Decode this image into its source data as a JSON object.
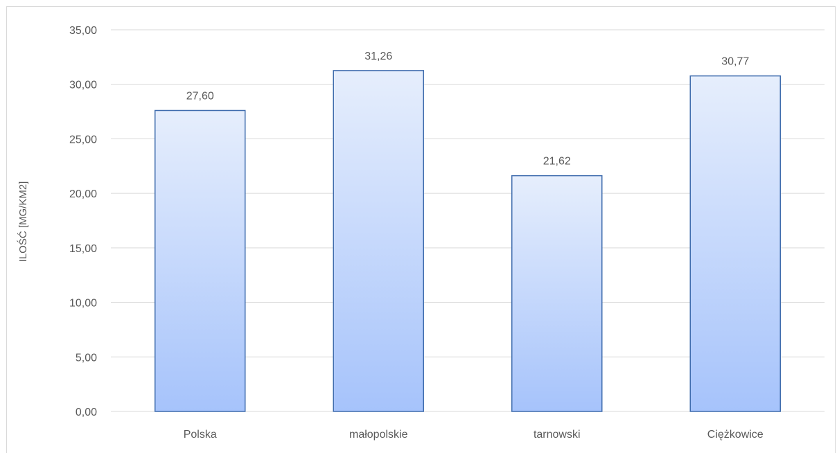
{
  "chart_data": {
    "type": "bar",
    "categories": [
      "Polska",
      "małopolskie",
      "tarnowski",
      "Ciężkowice"
    ],
    "values": [
      27.6,
      31.26,
      21.62,
      30.77
    ],
    "value_labels": [
      "27,60",
      "31,26",
      "21,62",
      "30,77"
    ],
    "ylabel": "ILOŚĆ [MG/KM2]",
    "xlabel": "",
    "ylim": [
      0,
      35
    ],
    "yticks": [
      0,
      5,
      10,
      15,
      20,
      25,
      30,
      35
    ],
    "ytick_labels": [
      "0,00",
      "5,00",
      "10,00",
      "15,00",
      "20,00",
      "25,00",
      "30,00",
      "35,00"
    ],
    "grid": true,
    "legend": false,
    "colors": {
      "bar_top": "#e6eefc",
      "bar_bottom": "#a6c3fb",
      "bar_border": "#3f6cad",
      "grid": "#d9d9d9",
      "text": "#595959"
    }
  }
}
